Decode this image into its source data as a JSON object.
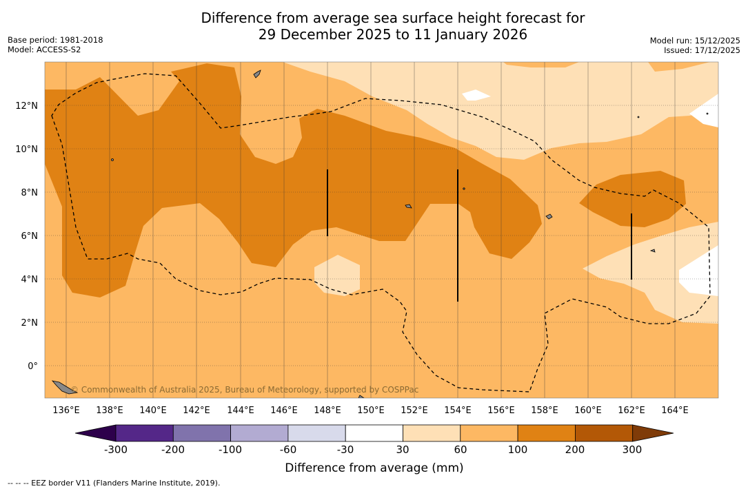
{
  "title": {
    "line1": "Difference from average sea surface height forecast for",
    "line2": "29 December 2025 to 11 January 2026"
  },
  "meta": {
    "base_period": "Base period: 1981-2018",
    "model": "Model: ACCESS-S2",
    "model_run": "Model run: 15/12/2025",
    "issued": "Issued: 17/12/2025"
  },
  "map": {
    "lon_labels": [
      "136°E",
      "138°E",
      "140°E",
      "142°E",
      "144°E",
      "146°E",
      "148°E",
      "150°E",
      "152°E",
      "154°E",
      "156°E",
      "158°E",
      "160°E",
      "162°E",
      "164°E"
    ],
    "lat_labels": [
      "12°N",
      "10°N",
      "8°N",
      "6°N",
      "4°N",
      "2°N",
      "0°"
    ],
    "copyright": "© Commonwealth of Australia 2025, Bureau of Meteorology, supported by COSPPac"
  },
  "colorbar": {
    "title": "Difference from average (mm)",
    "labels": [
      "-300",
      "-200",
      "-100",
      "-60",
      "-30",
      "30",
      "60",
      "100",
      "200",
      "300"
    ],
    "colors": {
      "below_min": "#2d004b",
      "bins": [
        "#542788",
        "#8073ac",
        "#b2abd2",
        "#d8daeb",
        "#ffffff",
        "#fee0b6",
        "#fdb863",
        "#e08214",
        "#b35806"
      ],
      "above_max": "#7f3b08"
    }
  },
  "footnote": "-- -- -- EEZ border V11 (Flanders Marine Institute, 2019)."
}
